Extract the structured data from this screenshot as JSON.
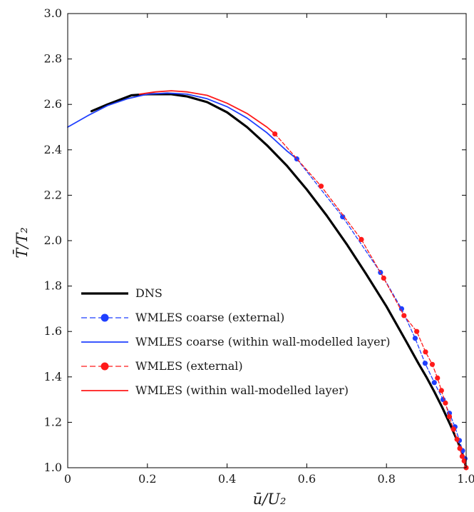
{
  "chart_data": {
    "type": "line",
    "title": "",
    "xlabel": "ū/U₂",
    "ylabel": "T̄/T₂",
    "xlim": [
      0,
      1.0
    ],
    "ylim": [
      1.0,
      3.0
    ],
    "xticks": [
      "0",
      "0.2",
      "0.4",
      "0.6",
      "0.8",
      "1.0"
    ],
    "yticks": [
      "1.0",
      "1.2",
      "1.4",
      "1.6",
      "1.8",
      "2.0",
      "2.2",
      "2.4",
      "2.6",
      "2.8",
      "3.0"
    ],
    "grid": false,
    "legend_position": "bottom-left",
    "series": [
      {
        "name": "DNS",
        "color": "#000000",
        "style": "solid-thick",
        "x": [
          0.06,
          0.1,
          0.16,
          0.2,
          0.26,
          0.3,
          0.35,
          0.4,
          0.45,
          0.5,
          0.55,
          0.6,
          0.65,
          0.7,
          0.75,
          0.8,
          0.85,
          0.88,
          0.9,
          0.92,
          0.94,
          0.96,
          0.98,
          0.99,
          1.0
        ],
        "y": [
          2.57,
          2.6,
          2.64,
          2.645,
          2.645,
          2.635,
          2.61,
          2.565,
          2.5,
          2.42,
          2.33,
          2.225,
          2.11,
          1.985,
          1.85,
          1.71,
          1.555,
          1.46,
          1.4,
          1.335,
          1.265,
          1.19,
          1.11,
          1.065,
          1.0
        ]
      },
      {
        "name": "WMLES coarse (external)",
        "color": "#1f3fff",
        "style": "dashed-marker",
        "x": [
          0.575,
          0.69,
          0.785,
          0.838,
          0.872,
          0.897,
          0.92,
          0.942,
          0.958,
          0.972,
          0.983,
          0.991,
          0.997
        ],
        "y": [
          2.36,
          2.105,
          1.86,
          1.7,
          1.57,
          1.46,
          1.375,
          1.3,
          1.24,
          1.18,
          1.12,
          1.075,
          1.04
        ]
      },
      {
        "name": "WMLES coarse (within wall-modelled layer)",
        "color": "#1f3fff",
        "style": "solid",
        "x": [
          0.0,
          0.05,
          0.1,
          0.15,
          0.2,
          0.25,
          0.3,
          0.35,
          0.4,
          0.45,
          0.5,
          0.55,
          0.575
        ],
        "y": [
          2.5,
          2.55,
          2.595,
          2.625,
          2.645,
          2.65,
          2.645,
          2.625,
          2.59,
          2.54,
          2.475,
          2.395,
          2.36
        ]
      },
      {
        "name": "WMLES (external)",
        "color": "#ff1a1a",
        "style": "dashed-marker",
        "x": [
          0.52,
          0.636,
          0.737,
          0.793,
          0.844,
          0.876,
          0.898,
          0.915,
          0.928,
          0.938,
          0.948,
          0.958,
          0.968,
          0.977,
          0.984,
          0.99,
          0.995,
          1.0
        ],
        "y": [
          2.47,
          2.24,
          2.005,
          1.835,
          1.67,
          1.6,
          1.51,
          1.455,
          1.395,
          1.34,
          1.285,
          1.225,
          1.17,
          1.125,
          1.085,
          1.05,
          1.03,
          1.0
        ]
      },
      {
        "name": "WMLES (within wall-modelled layer)",
        "color": "#ff1a1a",
        "style": "solid",
        "x": [
          0.18,
          0.22,
          0.26,
          0.3,
          0.35,
          0.4,
          0.45,
          0.5,
          0.52
        ],
        "y": [
          2.645,
          2.655,
          2.66,
          2.655,
          2.64,
          2.605,
          2.56,
          2.5,
          2.47
        ]
      }
    ]
  }
}
